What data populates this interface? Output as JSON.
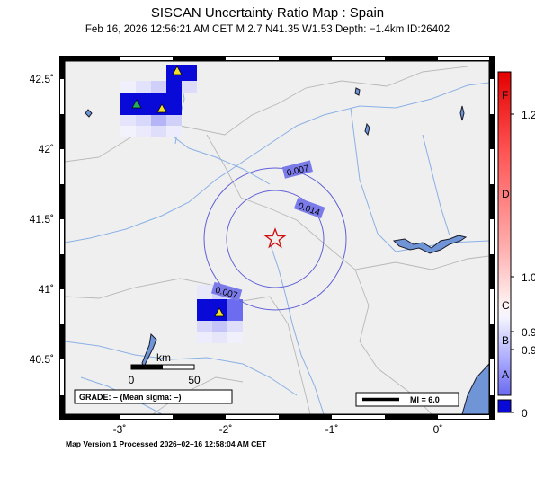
{
  "title": "SISCAN Uncertainty Ratio Map : Spain",
  "subtitle": "Feb 16, 2026 12:56:21 AM CET   M 2.7   N41.35 W1.53   Depth: −1.4km   ID:26402",
  "footer": "Map Version 1 Processed 2026–02–16 12:58:04 AM CET",
  "axes": {
    "lon_ticks": [
      "-3˚",
      "-2˚",
      "-1˚",
      "0˚"
    ],
    "lat_ticks": [
      "42.5˚",
      "42˚",
      "41.5˚",
      "41˚",
      "40.5˚"
    ]
  },
  "contours": [
    {
      "label": "0.007"
    },
    {
      "label": "0.014"
    },
    {
      "label": "0.007"
    }
  ],
  "scalebar": {
    "unit": "km",
    "start": "0",
    "end": "50"
  },
  "grade_box": "GRADE: – (Mean sigma: –)",
  "mi_legend": "MI = 6.0",
  "colorbar": {
    "letters": [
      "F",
      "D",
      "C",
      "B",
      "A"
    ],
    "values": [
      "1.2",
      "1.0",
      "0.9",
      "0.9",
      "0"
    ]
  },
  "epicenter": {
    "lat": 41.35,
    "lon": -1.53,
    "symbol": "star",
    "color": "#d01010"
  },
  "stations": [
    {
      "color": "#22b060"
    },
    {
      "color": "#f2e02a"
    },
    {
      "color": "#f2e02a"
    },
    {
      "color": "#f2e02a"
    }
  ],
  "colors": {
    "land": "#efefef",
    "water": "#6f95d6",
    "contour": "#6060d8",
    "contour_label_bg": "#7a7ae8",
    "high_ratio": "#0a0ad8"
  }
}
